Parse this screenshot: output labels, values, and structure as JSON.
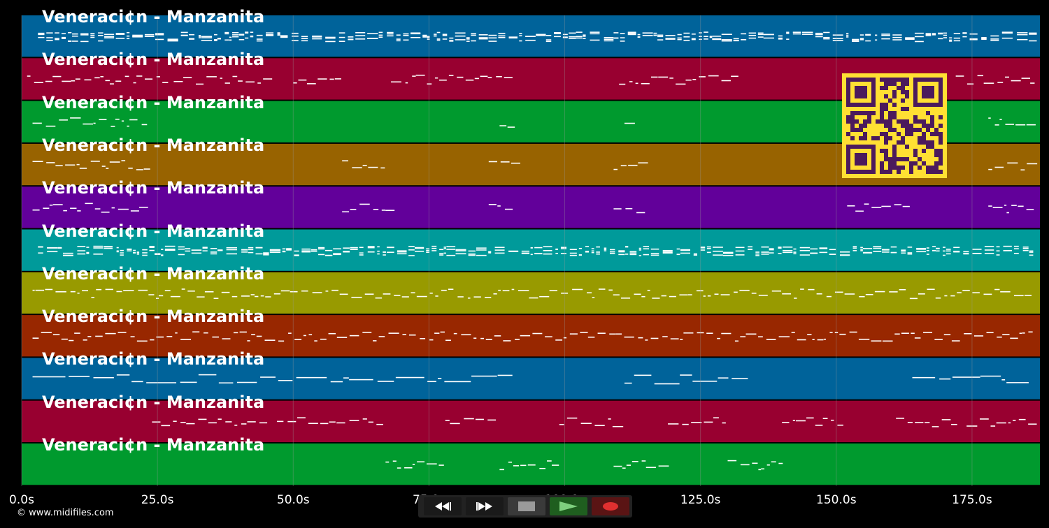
{
  "lanes": [
    {
      "title": "Veneraci¢n - Manzanita",
      "color": "#00639a",
      "pattern": "dense"
    },
    {
      "title": "Veneraci¢n - Manzanita",
      "color": "#980030",
      "pattern": "sparse-a"
    },
    {
      "title": "Veneraci¢n - Manzanita",
      "color": "#009a2e",
      "pattern": "sparse-b"
    },
    {
      "title": "Veneraci¢n - Manzanita",
      "color": "#986300",
      "pattern": "sparse-c"
    },
    {
      "title": "Veneraci¢n - Manzanita",
      "color": "#62009a",
      "pattern": "sparse-c"
    },
    {
      "title": "Veneraci¢n - Manzanita",
      "color": "#009a9a",
      "pattern": "dense"
    },
    {
      "title": "Veneraci¢n - Manzanita",
      "color": "#989a00",
      "pattern": "medium"
    },
    {
      "title": "Veneraci¢n - Manzanita",
      "color": "#982700",
      "pattern": "medium"
    },
    {
      "title": "Veneraci¢n - Manzanita",
      "color": "#00639a",
      "pattern": "long"
    },
    {
      "title": "Veneraci¢n - Manzanita",
      "color": "#980030",
      "pattern": "sparse-d"
    },
    {
      "title": "Veneraci¢n - Manzanita",
      "color": "#009a2e",
      "pattern": "sparse-e"
    }
  ],
  "time_axis": {
    "unit": "s",
    "max_seconds": 187.5,
    "ticks": [
      "0.0s",
      "25.0s",
      "50.0s",
      "75.0s",
      "100.0s",
      "125.0s",
      "150.0s",
      "175.0s"
    ],
    "tick_values": [
      0,
      25,
      50,
      75,
      100,
      125,
      150,
      175
    ]
  },
  "copyright": "© www.midifiles.com",
  "transport": {
    "buttons": [
      {
        "name": "rewind-button",
        "icon": "rewind-icon",
        "color": "#1a1a1a"
      },
      {
        "name": "fast-forward-button",
        "icon": "fast-forward-icon",
        "color": "#1a1a1a"
      },
      {
        "name": "stop-button",
        "icon": "stop-icon",
        "color": "#3a3a3a"
      },
      {
        "name": "play-button",
        "icon": "play-icon",
        "color": "#1f5e1f"
      },
      {
        "name": "record-button",
        "icon": "record-icon",
        "color": "#5a1414"
      }
    ]
  },
  "qr_code": {
    "fg": "#4b1a5c",
    "bg": "#ffe033"
  },
  "colors": {
    "background": "#000000",
    "gridline": "#9a9a9a",
    "notes": "#ffffff"
  }
}
